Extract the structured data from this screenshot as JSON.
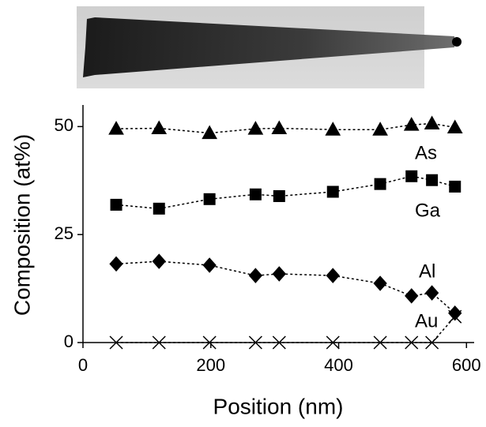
{
  "chart_data": {
    "type": "line",
    "x_label": "Position (nm)",
    "y_label": "Composition (at%)",
    "x": [
      52,
      119,
      198,
      270,
      307,
      391,
      465,
      514,
      546,
      582
    ],
    "series": [
      {
        "name": "As",
        "color": "#000000",
        "marker": "triangle",
        "values": [
          49.5,
          49.6,
          48.5,
          49.5,
          49.6,
          49.3,
          49.3,
          50.4,
          50.7,
          49.8
        ]
      },
      {
        "name": "Ga",
        "color": "#000000",
        "marker": "square",
        "values": [
          31.9,
          31.0,
          33.2,
          34.3,
          33.9,
          34.9,
          36.7,
          38.5,
          37.6,
          36.1
        ]
      },
      {
        "name": "Al",
        "color": "#000000",
        "marker": "diamond",
        "values": [
          18.2,
          18.8,
          17.9,
          15.5,
          15.9,
          15.5,
          13.7,
          10.8,
          11.5,
          6.8
        ]
      },
      {
        "name": "Au",
        "color": "#000000",
        "marker": "x",
        "values": [
          0,
          0,
          0,
          0,
          0,
          0,
          0,
          0,
          0,
          6
        ]
      }
    ],
    "xlim": [
      0,
      612
    ],
    "ylim": [
      0,
      55
    ],
    "xticks": [
      0,
      200,
      400,
      600
    ],
    "yticks": [
      0,
      25,
      50
    ],
    "line_style": "dotted"
  }
}
